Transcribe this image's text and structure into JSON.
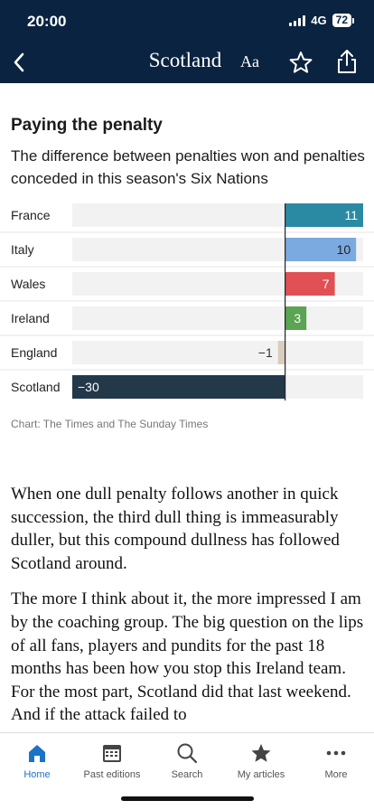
{
  "status_bar": {
    "time": "20:00",
    "network": "4G",
    "battery": "72"
  },
  "header": {
    "masthead": "Scotland",
    "font_button": "Aa"
  },
  "icons": {
    "back": "chevron-left-icon",
    "star": "star-icon",
    "share": "share-icon"
  },
  "chart": {
    "title": "Paying the penalty",
    "subtitle": "The difference between penalties won and penalties conceded in this season's Six Nations",
    "source": "Chart: The Times and The Sunday Times"
  },
  "chart_data": {
    "type": "bar",
    "orientation": "horizontal",
    "categories": [
      "France",
      "Italy",
      "Wales",
      "Ireland",
      "England",
      "Scotland"
    ],
    "values": [
      11,
      10,
      7,
      3,
      -1,
      -30
    ],
    "value_labels": [
      "11",
      "10",
      "7",
      "3",
      "−1",
      "−30"
    ],
    "colors": [
      "#2b8aa3",
      "#7aaae0",
      "#e05054",
      "#5aa454",
      "#d9cdbd",
      "#23394a"
    ],
    "xlim": [
      -30,
      11
    ],
    "title": "Paying the penalty",
    "xlabel": "",
    "ylabel": "",
    "grid": false,
    "legend": "none"
  },
  "article": {
    "paragraphs": [
      "When one dull penalty follows another in quick succession, the third dull thing is immeasurably duller, but this compound dullness has followed Scotland around.",
      "The more I think about it, the more impressed I am by the coaching group. The big question on the lips of all fans, players and pundits for the past 18 months has been how you stop this Ireland team. For the most part, Scotland did that last weekend. And if the attack failed to"
    ]
  },
  "tabbar": {
    "items": [
      {
        "label": "Home",
        "icon": "home-icon",
        "active": true
      },
      {
        "label": "Past editions",
        "icon": "calendar-icon",
        "active": false
      },
      {
        "label": "Search",
        "icon": "search-icon",
        "active": false
      },
      {
        "label": "My articles",
        "icon": "star-icon",
        "active": false
      },
      {
        "label": "More",
        "icon": "more-icon",
        "active": false
      }
    ]
  }
}
